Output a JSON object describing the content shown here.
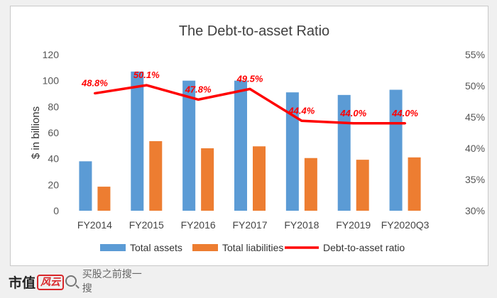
{
  "chart_data": {
    "type": "bar+line",
    "title": "The Debt-to-asset Ratio",
    "ylabel": "$ in billions",
    "ylim": [
      0,
      120
    ],
    "y_ticks": [
      "0",
      "20",
      "40",
      "60",
      "80",
      "100",
      "120"
    ],
    "y2lim": [
      30,
      55
    ],
    "y2_ticks": [
      "30%",
      "35%",
      "40%",
      "45%",
      "50%",
      "55%"
    ],
    "categories": [
      "FY2014",
      "FY2015",
      "FY2016",
      "FY2017",
      "FY2018",
      "FY2019",
      "FY2020Q3"
    ],
    "series": [
      {
        "name": "Total assets",
        "type": "bar",
        "axis": "left",
        "color": "#5b9bd5",
        "values": [
          38,
          107,
          100,
          100,
          91,
          89,
          93
        ]
      },
      {
        "name": "Total liabilities",
        "type": "bar",
        "axis": "left",
        "color": "#ed7d31",
        "values": [
          18.5,
          53.5,
          48,
          49.5,
          40.5,
          39.2,
          41
        ]
      },
      {
        "name": "Debt-to-asset ratio",
        "type": "line",
        "axis": "right",
        "color": "#ff0000",
        "values": [
          48.8,
          50.1,
          47.8,
          49.5,
          44.4,
          44.0,
          44.0
        ],
        "labels": [
          "48.8%",
          "50.1%",
          "47.8%",
          "49.5%",
          "44.4%",
          "44.0%",
          "44.0%"
        ]
      }
    ],
    "grid": false,
    "legend_position": "bottom"
  },
  "footer": {
    "brand": "市值",
    "brand_badge": "风云",
    "search_placeholder": "买股之前搜一搜"
  }
}
